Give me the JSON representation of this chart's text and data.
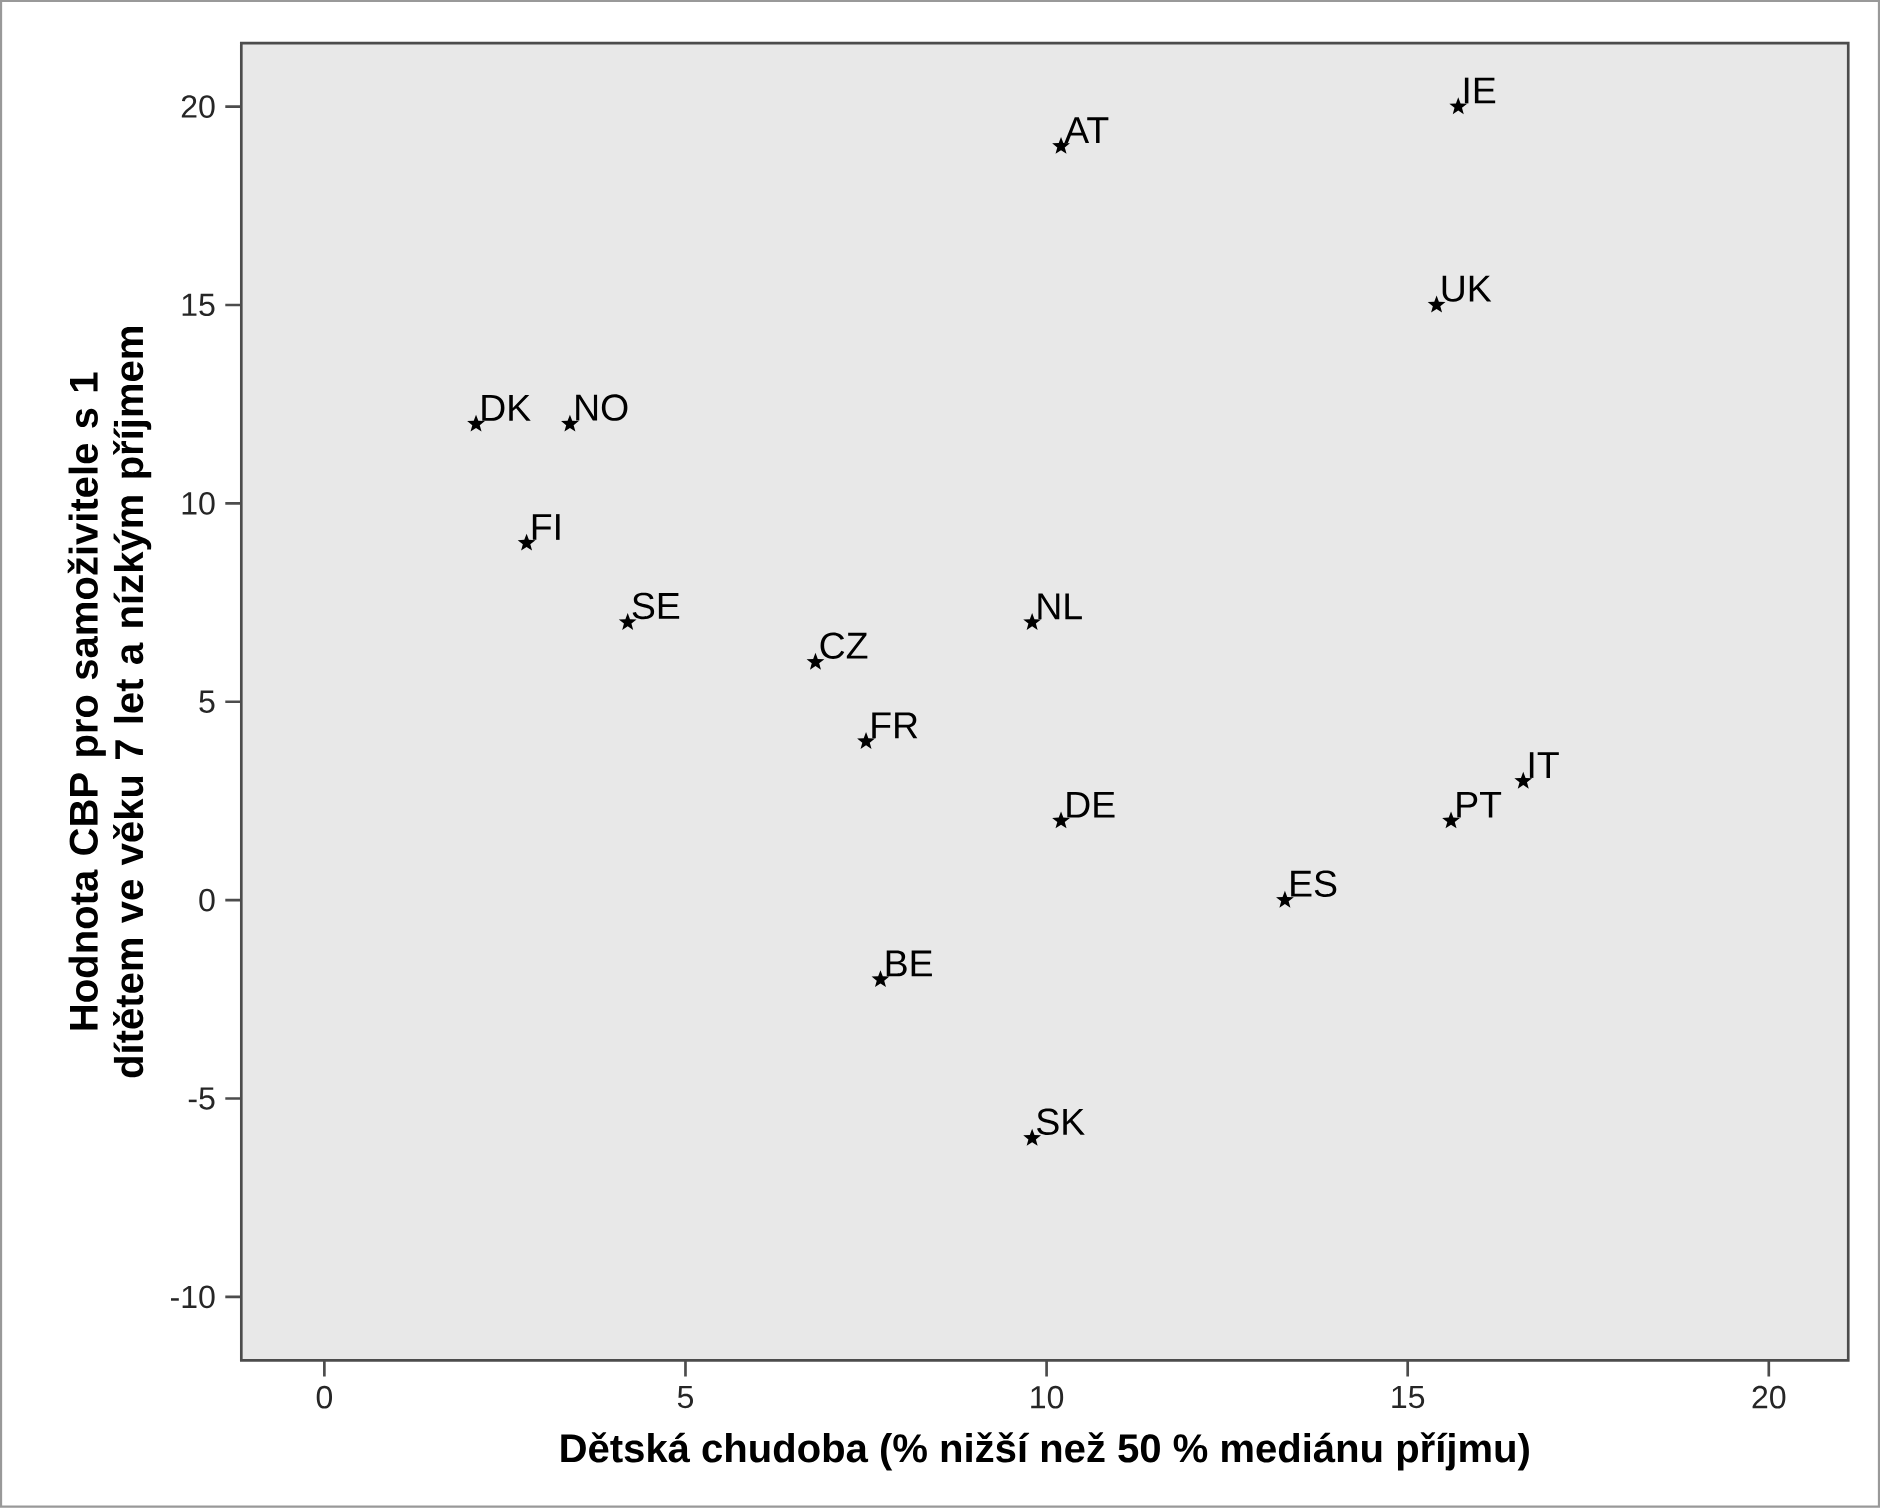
{
  "chart_data": {
    "type": "scatter",
    "xlabel": "Dětská chudoba (% nižší než 50 % mediánu příjmu)",
    "ylabel": "Hodnota CBP pro samoživitele s 1 dítětem ve věku 7 let a nízkým příjmem",
    "xlim": [
      -1.15,
      21.1
    ],
    "ylim": [
      -11.6,
      21.6
    ],
    "xticks": [
      0,
      5,
      10,
      15,
      20
    ],
    "yticks": [
      -10,
      -5,
      0,
      5,
      10,
      15,
      20
    ],
    "grid": false,
    "marker": "star",
    "series": [
      {
        "name": "AT",
        "color": "#000000",
        "x": [
          10.2
        ],
        "values": [
          19
        ]
      },
      {
        "name": "IE",
        "color": "#000000",
        "x": [
          15.7
        ],
        "values": [
          20
        ]
      },
      {
        "name": "UK",
        "color": "#000000",
        "x": [
          15.4
        ],
        "values": [
          15
        ]
      },
      {
        "name": "DK",
        "color": "#000000",
        "x": [
          2.1
        ],
        "values": [
          12
        ]
      },
      {
        "name": "NO",
        "color": "#000000",
        "x": [
          3.4
        ],
        "values": [
          12
        ]
      },
      {
        "name": "FI",
        "color": "#000000",
        "x": [
          2.8
        ],
        "values": [
          9
        ]
      },
      {
        "name": "SE",
        "color": "#000000",
        "x": [
          4.2
        ],
        "values": [
          7
        ]
      },
      {
        "name": "NL",
        "color": "#000000",
        "x": [
          9.8
        ],
        "values": [
          7
        ]
      },
      {
        "name": "CZ",
        "color": "#000000",
        "x": [
          6.8
        ],
        "values": [
          6
        ]
      },
      {
        "name": "FR",
        "color": "#000000",
        "x": [
          7.5
        ],
        "values": [
          4
        ]
      },
      {
        "name": "IT",
        "color": "#000000",
        "x": [
          16.6
        ],
        "values": [
          3
        ]
      },
      {
        "name": "DE",
        "color": "#000000",
        "x": [
          10.2
        ],
        "values": [
          2
        ]
      },
      {
        "name": "PT",
        "color": "#000000",
        "x": [
          15.6
        ],
        "values": [
          2
        ]
      },
      {
        "name": "ES",
        "color": "#000000",
        "x": [
          13.3
        ],
        "values": [
          0
        ]
      },
      {
        "name": "BE",
        "color": "#000000",
        "x": [
          7.7
        ],
        "values": [
          -2
        ]
      },
      {
        "name": "SK",
        "color": "#000000",
        "x": [
          9.8
        ],
        "values": [
          -6
        ]
      }
    ]
  }
}
